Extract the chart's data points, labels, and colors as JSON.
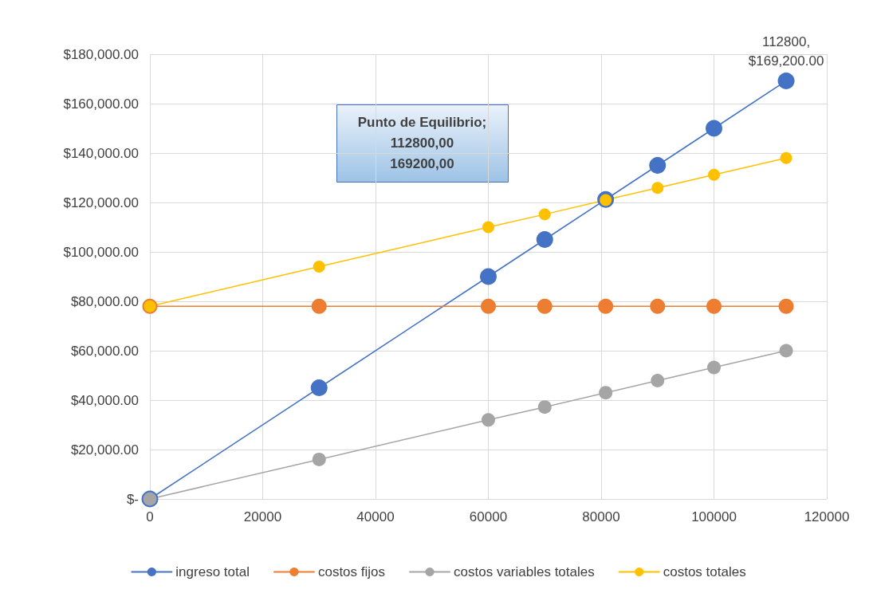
{
  "chart_data": {
    "type": "line",
    "x": [
      0,
      30000,
      60000,
      70000,
      80800,
      90000,
      100000,
      112800
    ],
    "series": [
      {
        "name": "ingreso total",
        "color": "#4472c4",
        "values": [
          0,
          45000,
          90000,
          105000,
          121200,
          135000,
          150000,
          169200
        ]
      },
      {
        "name": "costos fijos",
        "color": "#ed7d31",
        "values": [
          78000,
          78000,
          78000,
          78000,
          78000,
          78000,
          78000,
          78000
        ]
      },
      {
        "name": "costos variables totales",
        "color": "#a5a5a5",
        "values": [
          0,
          16000,
          32000,
          37200,
          43000,
          47900,
          53200,
          60000
        ]
      },
      {
        "name": "costos totales",
        "color": "#ffc000",
        "values": [
          78000,
          94000,
          110000,
          115200,
          121000,
          125900,
          131200,
          138000
        ]
      }
    ],
    "xlim": [
      0,
      120000
    ],
    "xticks": [
      0,
      20000,
      40000,
      60000,
      80000,
      100000,
      120000
    ],
    "ylim": [
      0,
      180000
    ],
    "yticks": [
      {
        "value": 0,
        "label": "$-"
      },
      {
        "value": 20000,
        "label": "$20,000.00"
      },
      {
        "value": 40000,
        "label": "$40,000.00"
      },
      {
        "value": 60000,
        "label": "$60,000.00"
      },
      {
        "value": 80000,
        "label": "$80,000.00"
      },
      {
        "value": 100000,
        "label": "$100,000.00"
      },
      {
        "value": 120000,
        "label": "$120,000.00"
      },
      {
        "value": 140000,
        "label": "$140,000.00"
      },
      {
        "value": 160000,
        "label": "$160,000.00"
      },
      {
        "value": 180000,
        "label": "$180,000.00"
      }
    ],
    "annotations": [
      {
        "text": "112800, $169,200.00",
        "x": 112800,
        "y": 169200
      },
      "Punto de Equilibrio;\n112800,00\n169200,00"
    ],
    "grid": true,
    "legend": "bottom",
    "marker": "circle",
    "line_style": "solid"
  }
}
